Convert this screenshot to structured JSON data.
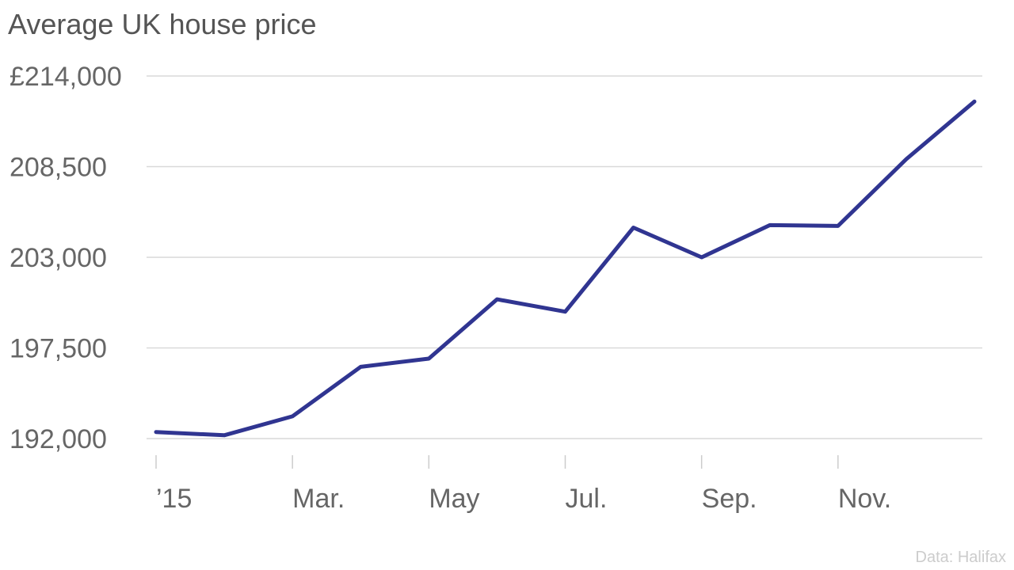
{
  "title": "Average UK house price",
  "source": "Data: Halifax",
  "chart_data": {
    "type": "line",
    "title": "Average UK house price",
    "currency_prefix": "£",
    "ylim": [
      192000,
      214000
    ],
    "y_ticks": [
      192000,
      197500,
      203000,
      208500,
      214000
    ],
    "y_tick_labels": [
      "192,000",
      "197,500",
      "203,000",
      "208,500",
      "214,000"
    ],
    "x_ticks": [
      0,
      2,
      4,
      6,
      8,
      10
    ],
    "x_tick_labels": [
      "’15",
      "Mar.",
      "May",
      "Jul.",
      "Sep.",
      "Nov."
    ],
    "xlim": [
      0,
      12
    ],
    "grid": true,
    "legend": "none",
    "color": "#303591",
    "series": [
      {
        "x": [
          0,
          1,
          2,
          3,
          4,
          5,
          6,
          7,
          8,
          9,
          10,
          11,
          12
        ],
        "values": [
          192400,
          192200,
          193350,
          196350,
          196850,
          200450,
          199700,
          204800,
          203000,
          204950,
          204900,
          208950,
          212450
        ]
      }
    ]
  }
}
